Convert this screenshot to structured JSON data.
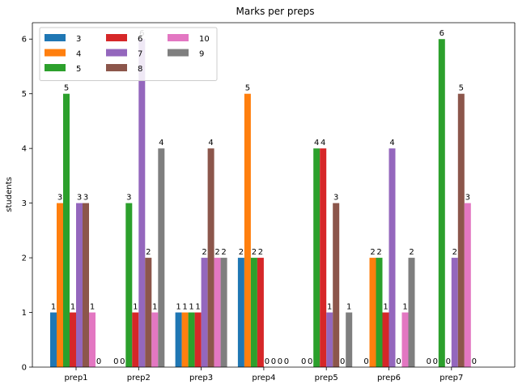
{
  "chart_data": {
    "type": "bar",
    "title": "Marks per preps",
    "xlabel": "",
    "ylabel": "students",
    "ylim": [
      0,
      6.3
    ],
    "yticks": [
      0,
      1,
      2,
      3,
      4,
      5,
      6
    ],
    "categories": [
      "prep1",
      "prep2",
      "prep3",
      "prep4",
      "prep5",
      "prep6",
      "prep7"
    ],
    "series": [
      {
        "name": "3",
        "color": "#1f77b4",
        "values": [
          1,
          0,
          1,
          2,
          0,
          0,
          0
        ]
      },
      {
        "name": "4",
        "color": "#ff7f0e",
        "values": [
          3,
          0,
          1,
          5,
          0,
          2,
          0
        ]
      },
      {
        "name": "5",
        "color": "#2ca02c",
        "values": [
          5,
          3,
          1,
          2,
          4,
          2,
          6
        ]
      },
      {
        "name": "6",
        "color": "#d62728",
        "values": [
          1,
          1,
          1,
          2,
          4,
          1,
          0
        ]
      },
      {
        "name": "7",
        "color": "#9467bd",
        "values": [
          3,
          6,
          2,
          0,
          1,
          4,
          2
        ]
      },
      {
        "name": "8",
        "color": "#8c564b",
        "values": [
          3,
          2,
          4,
          0,
          3,
          0,
          5
        ]
      },
      {
        "name": "10",
        "color": "#e377c2",
        "values": [
          1,
          1,
          2,
          0,
          0,
          1,
          3
        ]
      },
      {
        "name": "9",
        "color": "#7f7f7f",
        "values": [
          0,
          4,
          2,
          0,
          1,
          2,
          0
        ]
      }
    ],
    "legend": {
      "placement": "top-left",
      "columns": 3
    },
    "grid": false
  }
}
